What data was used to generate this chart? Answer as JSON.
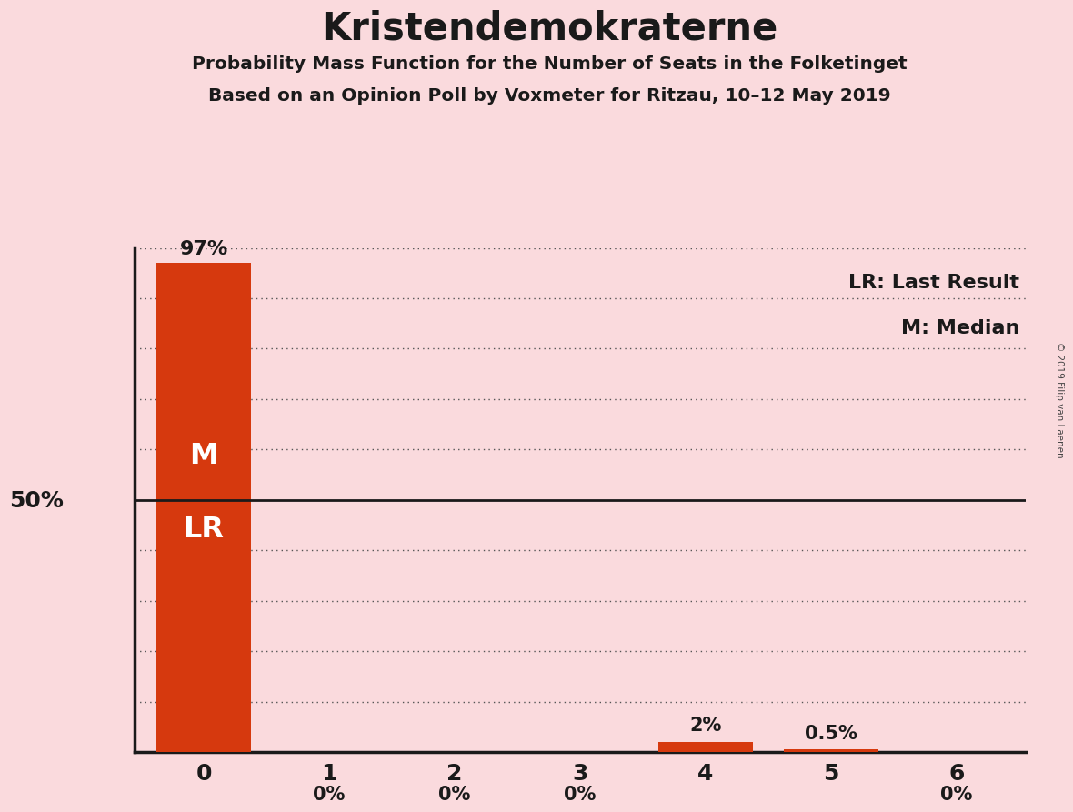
{
  "title": "Kristendemokraterne",
  "subtitle1": "Probability Mass Function for the Number of Seats in the Folketinget",
  "subtitle2": "Based on an Opinion Poll by Voxmeter for Ritzau, 10–12 May 2019",
  "categories": [
    0,
    1,
    2,
    3,
    4,
    5,
    6
  ],
  "values": [
    97,
    0,
    0,
    0,
    2,
    0.5,
    0
  ],
  "bar_labels": [
    "97%",
    "0%",
    "0%",
    "0%",
    "2%",
    "0.5%",
    "0%"
  ],
  "bar_color": "#D6390E",
  "background_color": "#FADADD",
  "text_color": "#1a1a1a",
  "legend_lr": "LR: Last Result",
  "legend_m": "M: Median",
  "copyright_text": "© 2019 Filip van Laenen",
  "ylim": [
    0,
    100
  ],
  "dotted_yticks": [
    10,
    20,
    30,
    40,
    60,
    70,
    80,
    90,
    100
  ],
  "solid_ytick": 50,
  "bar_width": 0.75
}
